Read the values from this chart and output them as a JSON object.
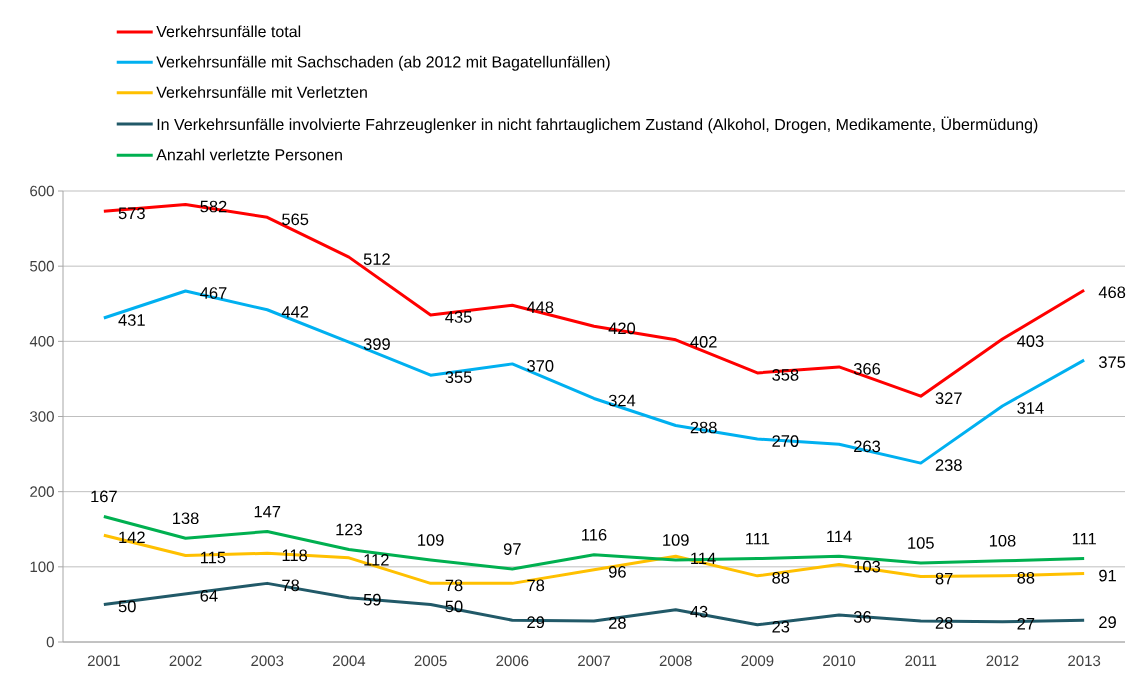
{
  "chart_data": {
    "type": "line",
    "categories": [
      "2001",
      "2002",
      "2003",
      "2004",
      "2005",
      "2006",
      "2007",
      "2008",
      "2009",
      "2010",
      "2011",
      "2012",
      "2013"
    ],
    "series": [
      {
        "name": "Verkehrsunfälle total",
        "color": "#ff0000",
        "values": [
          573,
          582,
          565,
          512,
          435,
          448,
          420,
          402,
          358,
          366,
          327,
          403,
          468
        ]
      },
      {
        "name": "Verkehrsunfälle mit Sachschaden (ab 2012 mit Bagatellunfällen)",
        "color": "#00b0f0",
        "values": [
          431,
          467,
          442,
          399,
          355,
          370,
          324,
          288,
          270,
          263,
          238,
          314,
          375
        ]
      },
      {
        "name": "Verkehrsunfälle mit Verletzten",
        "color": "#ffc000",
        "values": [
          142,
          115,
          118,
          112,
          78,
          78,
          96,
          114,
          88,
          103,
          87,
          88,
          91
        ]
      },
      {
        "name": "In Verkehrsunfälle involvierte Fahrzeuglenker in nicht fahrtauglichem Zustand (Alkohol, Drogen, Medikamente, Übermüdung)",
        "color": "#215968",
        "values": [
          50,
          64,
          78,
          59,
          50,
          29,
          28,
          43,
          23,
          36,
          28,
          27,
          29
        ]
      },
      {
        "name": "Anzahl verletzte Personen",
        "color": "#00b050",
        "values": [
          167,
          138,
          147,
          123,
          109,
          97,
          116,
          109,
          111,
          114,
          105,
          108,
          111
        ]
      }
    ],
    "ylim": [
      0,
      600
    ],
    "yticks": [
      0,
      100,
      200,
      300,
      400,
      500,
      600
    ],
    "grid": "y",
    "legend": "top",
    "data_labels": true
  }
}
